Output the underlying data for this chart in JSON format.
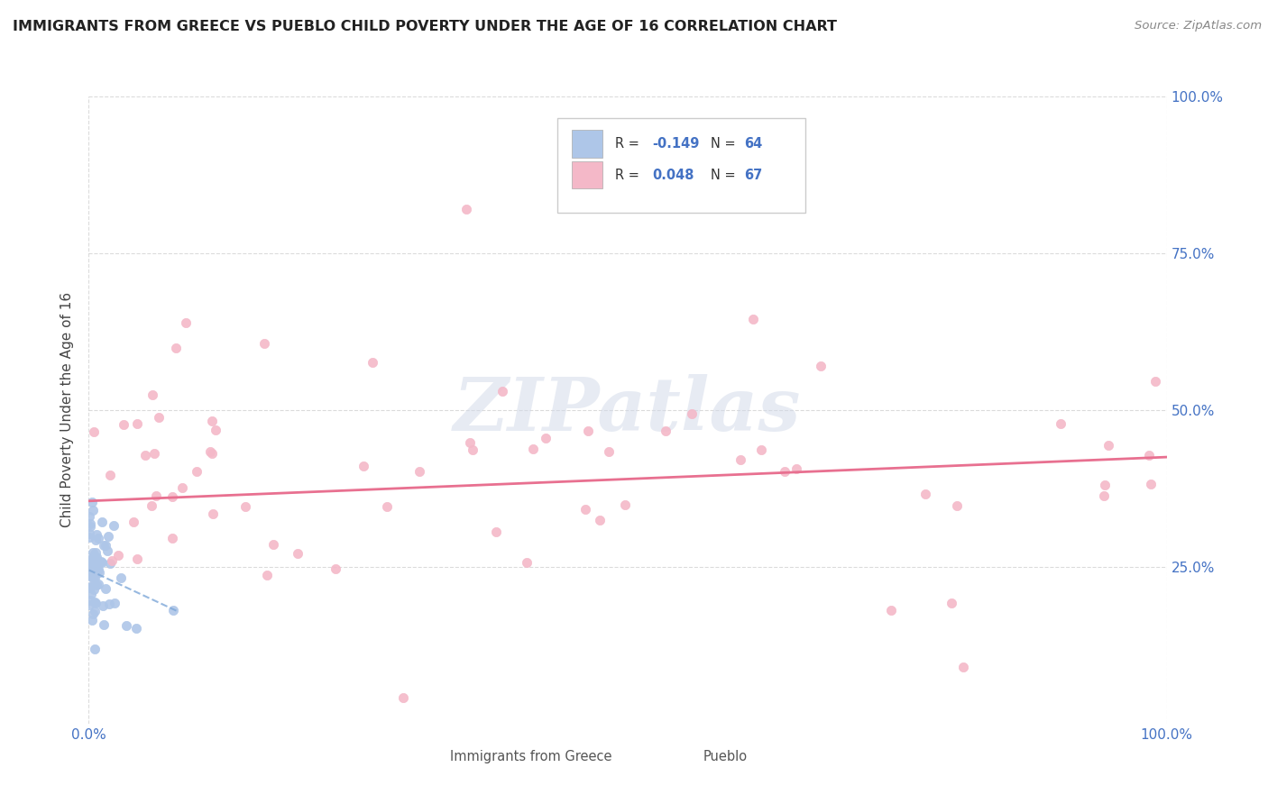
{
  "title": "IMMIGRANTS FROM GREECE VS PUEBLO CHILD POVERTY UNDER THE AGE OF 16 CORRELATION CHART",
  "source": "Source: ZipAtlas.com",
  "ylabel": "Child Poverty Under the Age of 16",
  "xlim": [
    0,
    1.0
  ],
  "ylim": [
    0,
    1.0
  ],
  "background_color": "#ffffff",
  "blue_r": -0.149,
  "blue_n": 64,
  "pink_r": 0.048,
  "pink_n": 67,
  "grid_color": "#cccccc",
  "blue_color": "#aec6e8",
  "pink_color": "#f4b8c8",
  "blue_line_color": "#7da7d8",
  "pink_line_color": "#e87090",
  "title_color": "#222222",
  "source_color": "#888888",
  "axis_label_color": "#444444",
  "tick_label_color": "#4472c4",
  "blue_seed": 15,
  "pink_seed": 8,
  "pink_intercept": 0.355,
  "pink_slope": 0.07,
  "blue_intercept": 0.245,
  "blue_slope": -0.8
}
